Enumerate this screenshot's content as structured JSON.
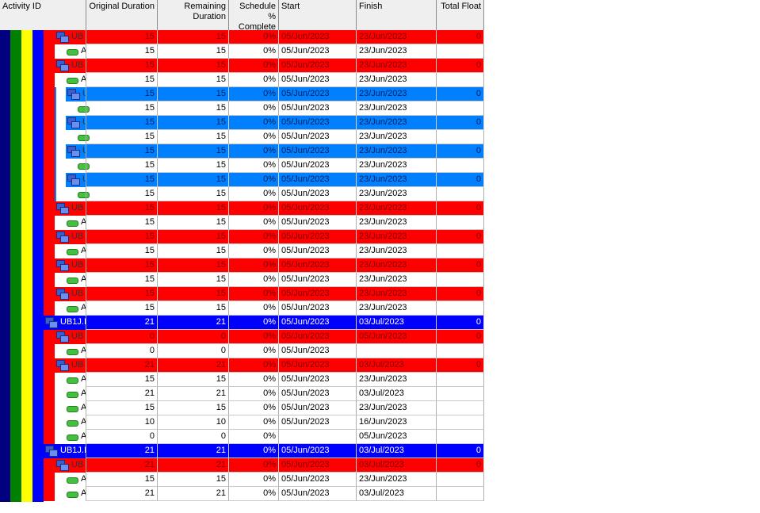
{
  "columns": {
    "activity_id": "Activity ID",
    "original_duration": "Original Duration",
    "remaining_duration": "Remaining Duration",
    "schedule_complete": "Schedule % Complete",
    "start": "Start",
    "finish": "Finish",
    "total_float": "Total Float"
  },
  "colors": {
    "wbs_red": "#ff0000",
    "wbs_lightblue": "#0080ff",
    "wbs_blue": "#0000ff",
    "band_navy": "#000080",
    "band_green": "#008000",
    "band_yellow": "#ffff00",
    "band_blue": "#0000ff"
  },
  "rows": [
    {
      "kind": "wbs",
      "color": "red",
      "level": 3,
      "id": "UB",
      "od": "15",
      "rd": "15",
      "pc": "0%",
      "start": "05/Jun/2023",
      "finish": "23/Jun/2023",
      "tf": "0"
    },
    {
      "kind": "act",
      "level": 3,
      "id": "A",
      "od": "15",
      "rd": "15",
      "pc": "0%",
      "start": "05/Jun/2023",
      "finish": "23/Jun/2023",
      "tf": ""
    },
    {
      "kind": "wbs",
      "color": "red",
      "level": 3,
      "id": "UB",
      "od": "15",
      "rd": "15",
      "pc": "0%",
      "start": "05/Jun/2023",
      "finish": "23/Jun/2023",
      "tf": "0"
    },
    {
      "kind": "act",
      "level": 3,
      "id": "A",
      "od": "15",
      "rd": "15",
      "pc": "0%",
      "start": "05/Jun/2023",
      "finish": "23/Jun/2023",
      "tf": ""
    },
    {
      "kind": "wbs",
      "color": "lightblue",
      "level": 4,
      "id": "U",
      "od": "15",
      "rd": "15",
      "pc": "0%",
      "start": "05/Jun/2023",
      "finish": "23/Jun/2023",
      "tf": "0"
    },
    {
      "kind": "act",
      "level": 4,
      "id": "",
      "od": "15",
      "rd": "15",
      "pc": "0%",
      "start": "05/Jun/2023",
      "finish": "23/Jun/2023",
      "tf": ""
    },
    {
      "kind": "wbs",
      "color": "lightblue",
      "level": 4,
      "id": "U",
      "od": "15",
      "rd": "15",
      "pc": "0%",
      "start": "05/Jun/2023",
      "finish": "23/Jun/2023",
      "tf": "0"
    },
    {
      "kind": "act",
      "level": 4,
      "id": "",
      "od": "15",
      "rd": "15",
      "pc": "0%",
      "start": "05/Jun/2023",
      "finish": "23/Jun/2023",
      "tf": ""
    },
    {
      "kind": "wbs",
      "color": "lightblue",
      "level": 4,
      "id": "U",
      "od": "15",
      "rd": "15",
      "pc": "0%",
      "start": "05/Jun/2023",
      "finish": "23/Jun/2023",
      "tf": "0"
    },
    {
      "kind": "act",
      "level": 4,
      "id": "",
      "od": "15",
      "rd": "15",
      "pc": "0%",
      "start": "05/Jun/2023",
      "finish": "23/Jun/2023",
      "tf": ""
    },
    {
      "kind": "wbs",
      "color": "lightblue",
      "level": 4,
      "id": "U",
      "od": "15",
      "rd": "15",
      "pc": "0%",
      "start": "05/Jun/2023",
      "finish": "23/Jun/2023",
      "tf": "0"
    },
    {
      "kind": "act",
      "level": 4,
      "id": "",
      "od": "15",
      "rd": "15",
      "pc": "0%",
      "start": "05/Jun/2023",
      "finish": "23/Jun/2023",
      "tf": ""
    },
    {
      "kind": "wbs",
      "color": "red",
      "level": 3,
      "id": "UB",
      "od": "15",
      "rd": "15",
      "pc": "0%",
      "start": "05/Jun/2023",
      "finish": "23/Jun/2023",
      "tf": "0"
    },
    {
      "kind": "act",
      "level": 3,
      "id": "A",
      "od": "15",
      "rd": "15",
      "pc": "0%",
      "start": "05/Jun/2023",
      "finish": "23/Jun/2023",
      "tf": ""
    },
    {
      "kind": "wbs",
      "color": "red",
      "level": 3,
      "id": "UB",
      "od": "15",
      "rd": "15",
      "pc": "0%",
      "start": "05/Jun/2023",
      "finish": "23/Jun/2023",
      "tf": "0"
    },
    {
      "kind": "act",
      "level": 3,
      "id": "A",
      "od": "15",
      "rd": "15",
      "pc": "0%",
      "start": "05/Jun/2023",
      "finish": "23/Jun/2023",
      "tf": ""
    },
    {
      "kind": "wbs",
      "color": "red",
      "level": 3,
      "id": "UB",
      "od": "15",
      "rd": "15",
      "pc": "0%",
      "start": "05/Jun/2023",
      "finish": "23/Jun/2023",
      "tf": "0"
    },
    {
      "kind": "act",
      "level": 3,
      "id": "A",
      "od": "15",
      "rd": "15",
      "pc": "0%",
      "start": "05/Jun/2023",
      "finish": "23/Jun/2023",
      "tf": ""
    },
    {
      "kind": "wbs",
      "color": "red",
      "level": 3,
      "id": "UB",
      "od": "15",
      "rd": "15",
      "pc": "0%",
      "start": "05/Jun/2023",
      "finish": "23/Jun/2023",
      "tf": "0"
    },
    {
      "kind": "act",
      "level": 3,
      "id": "A",
      "od": "15",
      "rd": "15",
      "pc": "0%",
      "start": "05/Jun/2023",
      "finish": "23/Jun/2023",
      "tf": ""
    },
    {
      "kind": "wbs",
      "color": "blue",
      "level": 2,
      "id": "UB1J.I",
      "od": "21",
      "rd": "21",
      "pc": "0%",
      "start": "05/Jun/2023",
      "finish": "03/Jul/2023",
      "tf": "0"
    },
    {
      "kind": "wbs",
      "color": "red",
      "level": 3,
      "id": "UB",
      "od": "0",
      "rd": "0",
      "pc": "0%",
      "start": "05/Jun/2023",
      "finish": "05/Jun/2023",
      "tf": "0"
    },
    {
      "kind": "act",
      "level": 3,
      "id": "A",
      "od": "0",
      "rd": "0",
      "pc": "0%",
      "start": "05/Jun/2023",
      "finish": "",
      "tf": ""
    },
    {
      "kind": "wbs",
      "color": "red",
      "level": 3,
      "id": "UB",
      "od": "21",
      "rd": "21",
      "pc": "0%",
      "start": "05/Jun/2023",
      "finish": "03/Jul/2023",
      "tf": "0"
    },
    {
      "kind": "act",
      "level": 3,
      "id": "A",
      "od": "15",
      "rd": "15",
      "pc": "0%",
      "start": "05/Jun/2023",
      "finish": "23/Jun/2023",
      "tf": ""
    },
    {
      "kind": "act",
      "level": 3,
      "id": "A",
      "od": "21",
      "rd": "21",
      "pc": "0%",
      "start": "05/Jun/2023",
      "finish": "03/Jul/2023",
      "tf": ""
    },
    {
      "kind": "act",
      "level": 3,
      "id": "A",
      "od": "15",
      "rd": "15",
      "pc": "0%",
      "start": "05/Jun/2023",
      "finish": "23/Jun/2023",
      "tf": ""
    },
    {
      "kind": "act",
      "level": 3,
      "id": "A",
      "od": "10",
      "rd": "10",
      "pc": "0%",
      "start": "05/Jun/2023",
      "finish": "16/Jun/2023",
      "tf": ""
    },
    {
      "kind": "act",
      "level": 3,
      "id": "A",
      "od": "0",
      "rd": "0",
      "pc": "0%",
      "start": "",
      "finish": "05/Jun/2023",
      "tf": ""
    },
    {
      "kind": "wbs",
      "color": "blue",
      "level": 2,
      "id": "UB1J.I",
      "od": "21",
      "rd": "21",
      "pc": "0%",
      "start": "05/Jun/2023",
      "finish": "03/Jul/2023",
      "tf": "0"
    },
    {
      "kind": "wbs",
      "color": "red",
      "level": 3,
      "id": "UB",
      "od": "21",
      "rd": "21",
      "pc": "0%",
      "start": "05/Jun/2023",
      "finish": "03/Jul/2023",
      "tf": "0"
    },
    {
      "kind": "act",
      "level": 3,
      "id": "A",
      "od": "15",
      "rd": "15",
      "pc": "0%",
      "start": "05/Jun/2023",
      "finish": "23/Jun/2023",
      "tf": ""
    },
    {
      "kind": "act",
      "level": 3,
      "id": "A",
      "od": "21",
      "rd": "21",
      "pc": "0%",
      "start": "05/Jun/2023",
      "finish": "03/Jul/2023",
      "tf": ""
    }
  ]
}
